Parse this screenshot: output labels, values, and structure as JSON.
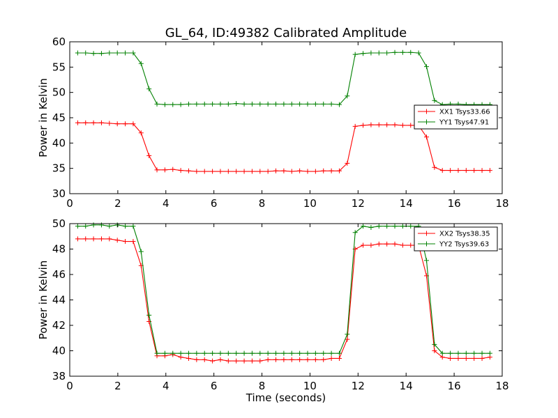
{
  "chart_data": [
    {
      "type": "line",
      "title": "GL_64, ID:49382 Calibrated Amplitude",
      "xlabel": "",
      "ylabel": "Power in Kelvin",
      "xlim": [
        0,
        18
      ],
      "ylim": [
        30,
        60
      ],
      "xticks": [
        "0",
        "2",
        "4",
        "6",
        "8",
        "10",
        "12",
        "14",
        "16",
        "18"
      ],
      "yticks": [
        "30",
        "35",
        "40",
        "45",
        "50",
        "55",
        "60"
      ],
      "grid": false,
      "legend": "center-right",
      "x": [
        0.33,
        0.66,
        0.99,
        1.32,
        1.65,
        1.98,
        2.31,
        2.64,
        2.97,
        3.3,
        3.63,
        3.96,
        4.29,
        4.62,
        4.95,
        5.28,
        5.61,
        5.94,
        6.27,
        6.6,
        6.93,
        7.26,
        7.59,
        7.92,
        8.25,
        8.58,
        8.91,
        9.24,
        9.57,
        9.9,
        10.23,
        10.56,
        10.89,
        11.22,
        11.55,
        11.88,
        12.21,
        12.54,
        12.87,
        13.2,
        13.53,
        13.86,
        14.19,
        14.52,
        14.85,
        15.18,
        15.51,
        15.84,
        16.17,
        16.5,
        16.83,
        17.16,
        17.49
      ],
      "series": [
        {
          "name": "XX1 Tsys33.66",
          "color": "#ff0000",
          "values": [
            44.0,
            44.0,
            44.0,
            44.0,
            43.9,
            43.8,
            43.8,
            43.8,
            42.0,
            37.5,
            34.7,
            34.7,
            34.8,
            34.6,
            34.5,
            34.4,
            34.4,
            34.4,
            34.4,
            34.4,
            34.4,
            34.4,
            34.4,
            34.4,
            34.4,
            34.5,
            34.5,
            34.4,
            34.5,
            34.4,
            34.4,
            34.5,
            34.5,
            34.5,
            36.0,
            43.3,
            43.5,
            43.6,
            43.6,
            43.6,
            43.6,
            43.5,
            43.5,
            43.5,
            41.2,
            35.2,
            34.6,
            34.6,
            34.6,
            34.6,
            34.6,
            34.6,
            34.6
          ]
        },
        {
          "name": "YY1 Tsys47.91",
          "color": "#008000",
          "values": [
            57.8,
            57.8,
            57.7,
            57.7,
            57.8,
            57.8,
            57.8,
            57.8,
            55.7,
            50.7,
            47.7,
            47.6,
            47.6,
            47.6,
            47.7,
            47.7,
            47.7,
            47.7,
            47.7,
            47.7,
            47.8,
            47.7,
            47.7,
            47.7,
            47.7,
            47.7,
            47.7,
            47.7,
            47.7,
            47.7,
            47.7,
            47.7,
            47.7,
            47.6,
            49.3,
            57.5,
            57.7,
            57.8,
            57.8,
            57.8,
            57.9,
            57.9,
            57.9,
            57.8,
            55.1,
            48.4,
            47.6,
            47.7,
            47.7,
            47.6,
            47.6,
            47.6,
            47.6
          ]
        }
      ]
    },
    {
      "type": "line",
      "title": "",
      "xlabel": "Time (seconds)",
      "ylabel": "Power in Kelvin",
      "xlim": [
        0,
        18
      ],
      "ylim": [
        38,
        50
      ],
      "xticks": [
        "0",
        "2",
        "4",
        "6",
        "8",
        "10",
        "12",
        "14",
        "16",
        "18"
      ],
      "yticks": [
        "38",
        "40",
        "42",
        "44",
        "46",
        "48",
        "50"
      ],
      "grid": false,
      "legend": "top-right",
      "x": [
        0.33,
        0.66,
        0.99,
        1.32,
        1.65,
        1.98,
        2.31,
        2.64,
        2.97,
        3.3,
        3.63,
        3.96,
        4.29,
        4.62,
        4.95,
        5.28,
        5.61,
        5.94,
        6.27,
        6.6,
        6.93,
        7.26,
        7.59,
        7.92,
        8.25,
        8.58,
        8.91,
        9.24,
        9.57,
        9.9,
        10.23,
        10.56,
        10.89,
        11.22,
        11.55,
        11.88,
        12.21,
        12.54,
        12.87,
        13.2,
        13.53,
        13.86,
        14.19,
        14.52,
        14.85,
        15.18,
        15.51,
        15.84,
        16.17,
        16.5,
        16.83,
        17.16,
        17.49
      ],
      "series": [
        {
          "name": "XX2 Tsys38.35",
          "color": "#ff0000",
          "values": [
            48.8,
            48.8,
            48.8,
            48.8,
            48.8,
            48.7,
            48.6,
            48.6,
            46.7,
            42.3,
            39.6,
            39.6,
            39.7,
            39.5,
            39.4,
            39.3,
            39.3,
            39.2,
            39.3,
            39.2,
            39.2,
            39.2,
            39.2,
            39.2,
            39.3,
            39.3,
            39.3,
            39.3,
            39.3,
            39.3,
            39.3,
            39.3,
            39.4,
            39.4,
            40.9,
            48.0,
            48.3,
            48.3,
            48.4,
            48.4,
            48.4,
            48.3,
            48.3,
            48.3,
            45.9,
            40.0,
            39.5,
            39.4,
            39.4,
            39.4,
            39.4,
            39.4,
            39.5
          ]
        },
        {
          "name": "YY2 Tsys39.63",
          "color": "#008000",
          "values": [
            49.8,
            49.8,
            49.9,
            49.9,
            49.8,
            49.9,
            49.8,
            49.8,
            47.8,
            42.8,
            39.8,
            39.8,
            39.8,
            39.8,
            39.8,
            39.8,
            39.8,
            39.8,
            39.8,
            39.8,
            39.8,
            39.8,
            39.8,
            39.8,
            39.8,
            39.8,
            39.8,
            39.8,
            39.8,
            39.8,
            39.8,
            39.8,
            39.8,
            39.8,
            41.3,
            49.3,
            49.8,
            49.7,
            49.8,
            49.8,
            49.8,
            49.8,
            49.8,
            49.8,
            47.1,
            40.5,
            39.8,
            39.8,
            39.8,
            39.8,
            39.8,
            39.8,
            39.8
          ]
        }
      ]
    }
  ]
}
